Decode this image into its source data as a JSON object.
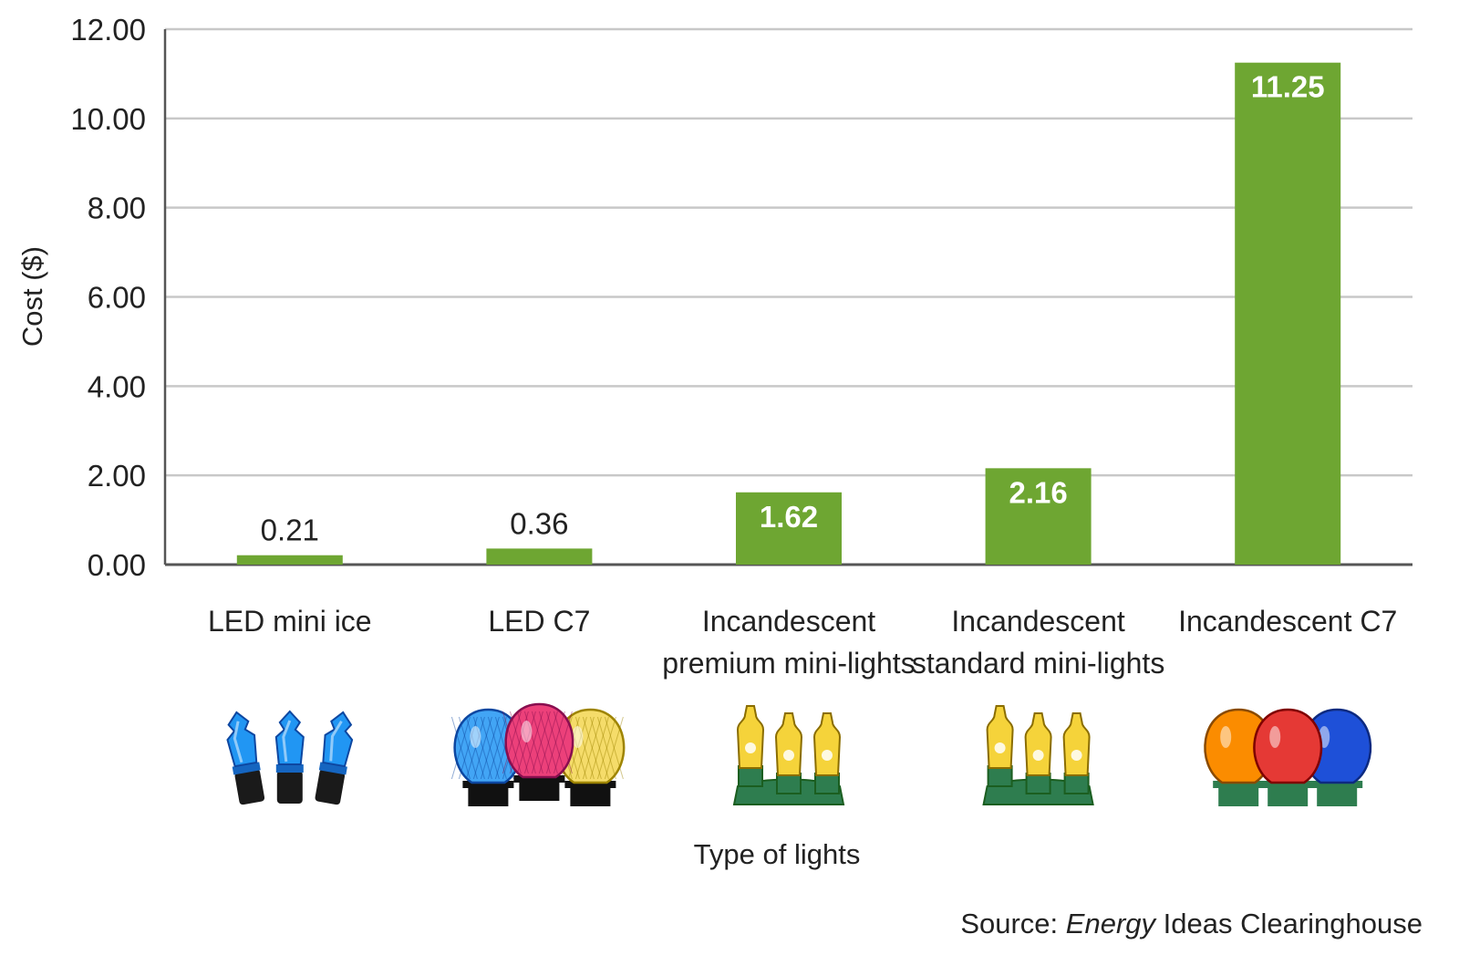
{
  "chart_data": {
    "type": "bar",
    "title": "",
    "xlabel": "Type of lights",
    "ylabel": "Cost ($)",
    "ylim": [
      0,
      12
    ],
    "yticks": [
      "0.00",
      "2.00",
      "4.00",
      "6.00",
      "8.00",
      "10.00",
      "12.00"
    ],
    "grid": true,
    "categories": [
      [
        "LED mini ice"
      ],
      [
        "LED C7"
      ],
      [
        "Incandescent",
        "premium mini-lights"
      ],
      [
        "Incandescent",
        "standard mini-lights"
      ],
      [
        "Incandescent C7"
      ]
    ],
    "values": [
      0.21,
      0.36,
      1.62,
      2.16,
      11.25
    ],
    "value_labels": [
      "0.21",
      "0.36",
      "1.62",
      "2.16",
      "11.25"
    ],
    "bar_color": "#6ea632",
    "grid_color": "#c8c8c8",
    "icons": [
      "blue-led-mini-lights-icon",
      "multicolor-led-c7-bulbs-icon",
      "yellow-incandescent-mini-lights-icon",
      "yellow-incandescent-mini-lights-icon",
      "multicolor-incandescent-c7-bulbs-icon"
    ]
  },
  "source": {
    "prefix": "Source: ",
    "italic": "Energy",
    "suffix": " Ideas Clearinghouse"
  }
}
